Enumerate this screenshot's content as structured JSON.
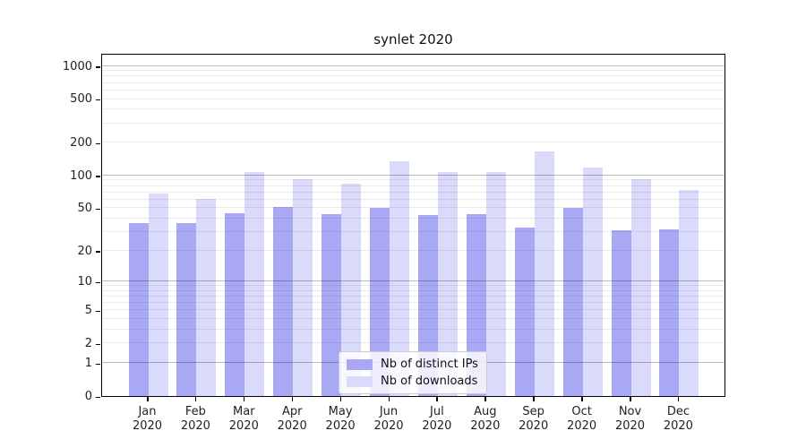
{
  "chart_data": {
    "type": "bar",
    "title": "synlet 2020",
    "categories": [
      "Jan 2020",
      "Feb 2020",
      "Mar 2020",
      "Apr 2020",
      "May 2020",
      "Jun 2020",
      "Jul 2020",
      "Aug 2020",
      "Sep 2020",
      "Oct 2020",
      "Nov 2020",
      "Dec 2020"
    ],
    "series": [
      {
        "name": "Nb of distinct IPs",
        "color": "#a8a8f4",
        "values": [
          36,
          36,
          45,
          51,
          44,
          50,
          43,
          44,
          33,
          50,
          31,
          32
        ]
      },
      {
        "name": "Nb of downloads",
        "color": "#dadafa",
        "values": [
          68,
          61,
          108,
          93,
          84,
          136,
          107,
          108,
          167,
          119,
          93,
          74
        ]
      }
    ],
    "y_scale": "log(1+x)",
    "y_ticks": [
      0,
      1,
      2,
      5,
      10,
      20,
      50,
      100,
      200,
      500,
      1000
    ],
    "y_minor_gridlines": [
      2,
      3,
      4,
      5,
      6,
      7,
      8,
      9,
      20,
      30,
      40,
      50,
      60,
      70,
      80,
      90,
      200,
      300,
      400,
      500,
      600,
      700,
      800,
      900
    ],
    "y_major_gridlines": [
      1,
      10,
      100,
      1000
    ],
    "ylim": [
      0,
      1312
    ],
    "grid": true,
    "legend_position": "lower center",
    "xlabel": "",
    "ylabel": ""
  }
}
